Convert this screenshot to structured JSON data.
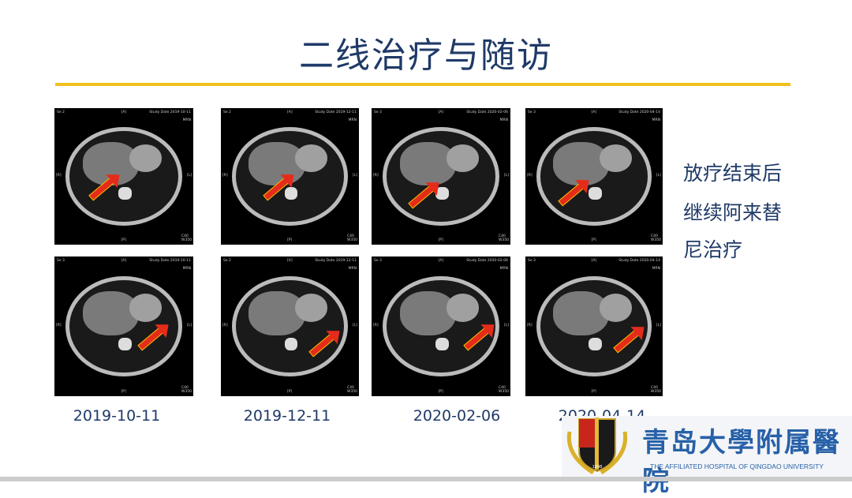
{
  "title": "二线治疗与随访",
  "side_text": [
    "放疗结束后",
    "继续阿来替",
    "尼治疗"
  ],
  "dates": [
    "2019-10-11",
    "2019-12-11",
    "2020-02-06",
    "2020-04-14"
  ],
  "ct_overlay": {
    "anterior": "[A]",
    "posterior": "[P]",
    "right": "[R]",
    "left": "[L]",
    "mrn": "MRN",
    "window": "C40 W350"
  },
  "ct_images": [
    {
      "series": "Se 2",
      "study_date": "Study Date 2019-10-11"
    },
    {
      "series": "Se 2",
      "study_date": "Study Date 2019-12-11"
    },
    {
      "series": "Se 3",
      "study_date": "Study Date 2020-02-06"
    },
    {
      "series": "Se 3",
      "study_date": "Study Date 2020-04-14"
    },
    {
      "series": "Se 3",
      "study_date": "Study Date 2019-10-11"
    },
    {
      "series": "Se 2",
      "study_date": "Study Date 2019-12-11"
    },
    {
      "series": "Se 3",
      "study_date": "Study Date 2020-02-06"
    },
    {
      "series": "Se 3",
      "study_date": "Study Date 2020-04-14"
    }
  ],
  "logo": {
    "name_cn": "青岛大學附属醫院",
    "name_en": "THE AFFILIATED HOSPITAL OF QINGDAO UNIVERSITY",
    "year": "1898"
  },
  "colors": {
    "title": "#1f3a68",
    "rule": "#f2c01e",
    "arrow": "#e52b1a"
  }
}
